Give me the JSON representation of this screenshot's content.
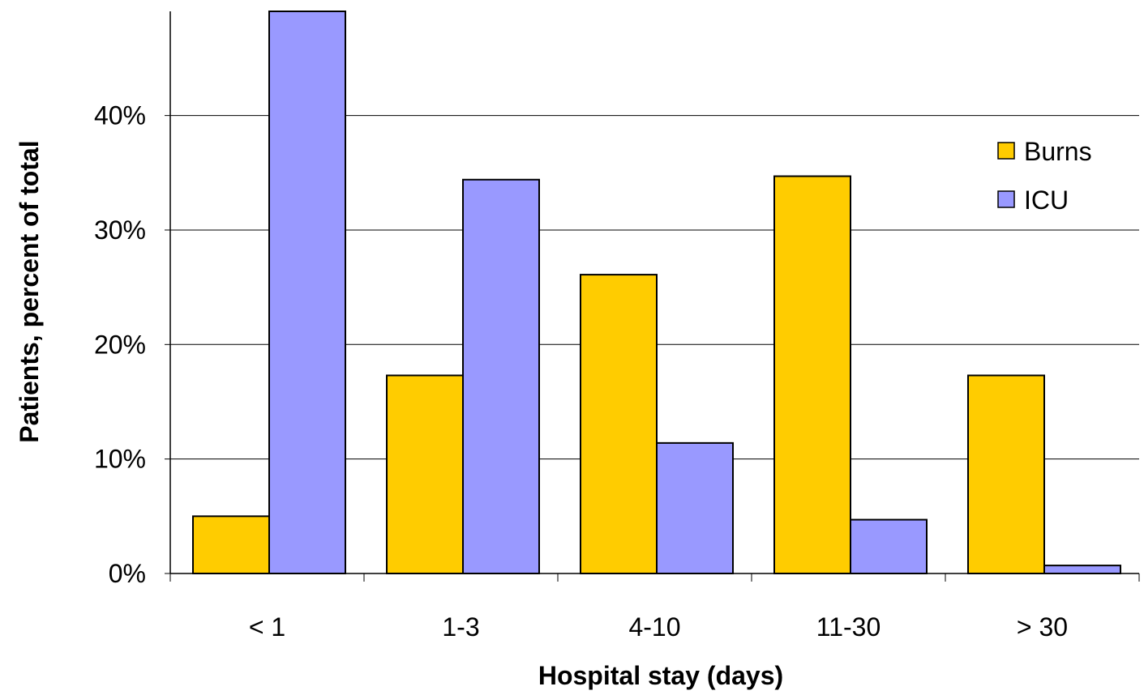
{
  "chart_data": {
    "type": "bar",
    "title": "",
    "xlabel": "Hospital stay (days)",
    "ylabel": "Patients, percent of total",
    "categories": [
      "< 1",
      "1-3",
      "4-10",
      "11-30",
      "> 30"
    ],
    "series": [
      {
        "name": "Burns",
        "color": "#FFCC00",
        "values": [
          5.0,
          17.3,
          26.1,
          34.7,
          17.3
        ]
      },
      {
        "name": "ICU",
        "color": "#9999FF",
        "values": [
          49.1,
          34.4,
          11.4,
          4.7,
          0.7
        ]
      }
    ],
    "ylim": [
      0,
      49.1
    ],
    "yticks": [
      0,
      10,
      20,
      30,
      40
    ],
    "ytick_labels": [
      "0%",
      "10%",
      "20%",
      "30%",
      "40%"
    ],
    "grid": true,
    "legend_position": "right",
    "gridline_color": "#000000"
  }
}
